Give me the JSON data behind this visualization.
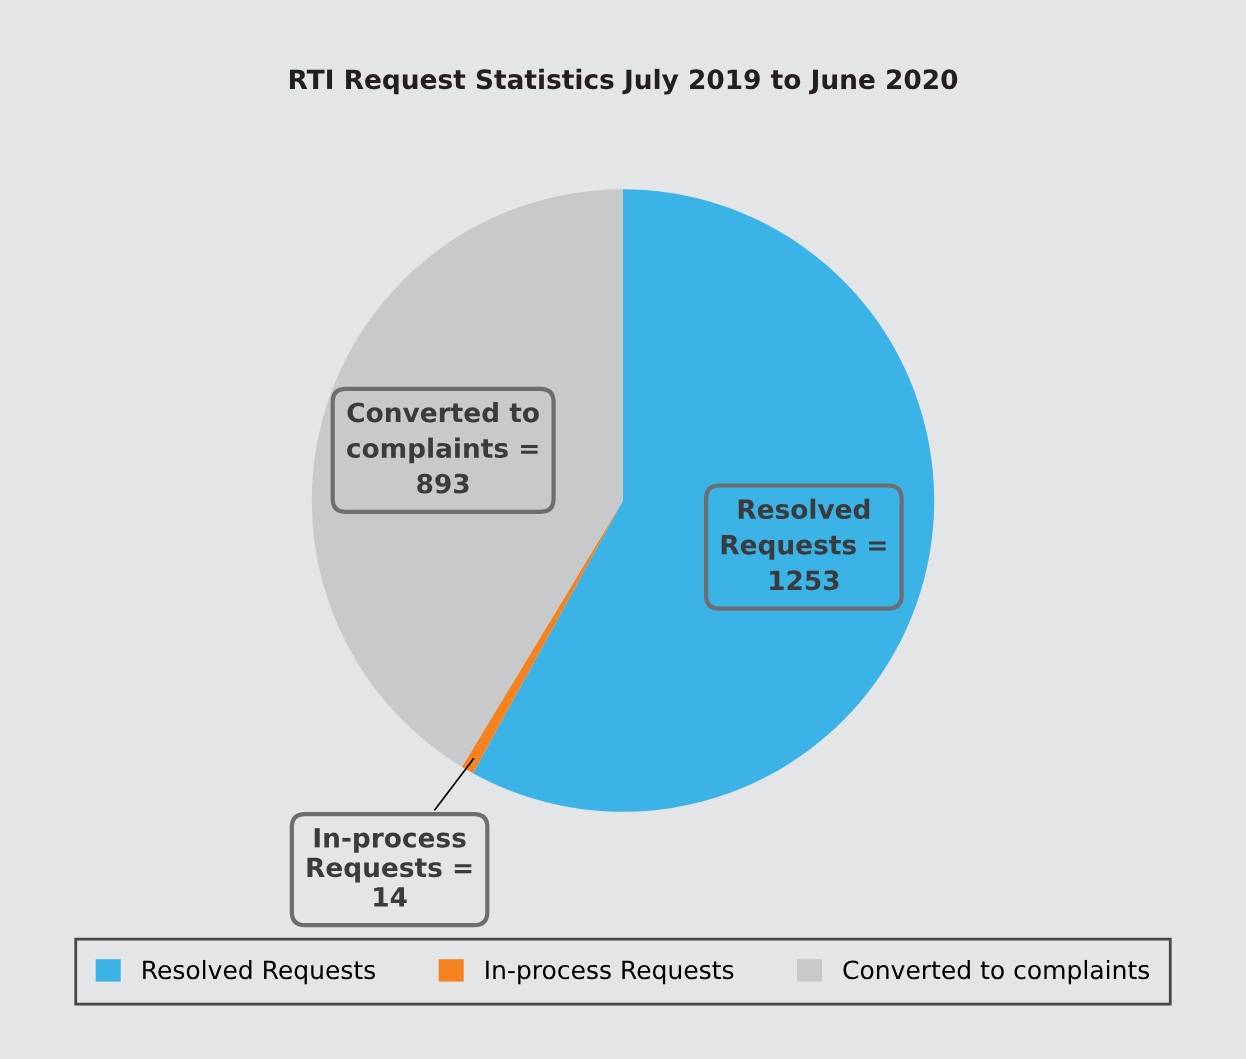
{
  "chart_data": {
    "type": "pie",
    "title": "RTI Request Statistics July 2019 to June 2020",
    "categories": [
      "Resolved Requests",
      "In-process Requests",
      "Converted to complaints"
    ],
    "values": [
      1253,
      14,
      893
    ],
    "colors": [
      "#3bb3e6",
      "#f58220",
      "#c8c9cb"
    ],
    "value_labels": [
      "Resolved Requests = 1253",
      "In-process Requests = 14",
      "Converted to complaints = 893"
    ],
    "legend": "bottom"
  }
}
